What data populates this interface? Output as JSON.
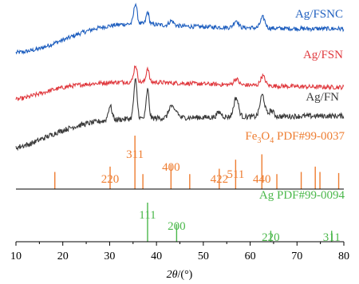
{
  "chart_data": {
    "type": "line",
    "xlabel_italic": "2θ",
    "xlabel_unit": "/(°)",
    "xlim": [
      10,
      80
    ],
    "x_ticks": [
      10,
      20,
      30,
      40,
      50,
      60,
      70,
      80
    ],
    "x_tick_labels": [
      "10",
      "20",
      "30",
      "40",
      "50",
      "60",
      "70",
      "80"
    ],
    "series": [
      {
        "name": "Ag/FSNC",
        "color": "#1f5fbf",
        "noise": 0.9,
        "x": [
          10,
          12,
          15,
          18,
          21,
          24,
          27,
          30,
          32,
          34,
          36,
          38,
          40,
          42,
          45,
          48,
          52,
          56,
          60,
          64,
          68,
          72,
          76,
          80
        ],
        "y": [
          0.0,
          0.4,
          1.6,
          3.8,
          6.0,
          8.3,
          10.1,
          11.2,
          11.7,
          12.0,
          12.1,
          12.0,
          11.7,
          11.4,
          11.1,
          10.9,
          10.7,
          10.5,
          10.4,
          10.2,
          10.1,
          10.0,
          10.0,
          10.0
        ],
        "peaks": [
          {
            "x": 35.5,
            "h": 8.5,
            "w": 0.35
          },
          {
            "x": 38.1,
            "h": 5.0,
            "w": 0.3
          },
          {
            "x": 43.2,
            "h": 2.0,
            "w": 0.5
          },
          {
            "x": 57.0,
            "h": 3.0,
            "w": 0.5
          },
          {
            "x": 62.7,
            "h": 4.5,
            "w": 0.5
          }
        ]
      },
      {
        "name": "Ag/FSN",
        "color": "#e0393e",
        "noise": 0.9,
        "x": [
          10,
          12,
          15,
          18,
          21,
          24,
          27,
          30,
          33,
          36,
          40,
          45,
          50,
          55,
          60,
          65,
          70,
          75,
          80
        ],
        "y": [
          0.0,
          0.8,
          2.5,
          4.2,
          5.5,
          6.3,
          6.8,
          7.2,
          7.4,
          7.4,
          7.3,
          6.9,
          6.6,
          6.3,
          6.1,
          5.8,
          5.5,
          5.3,
          5.2
        ],
        "peaks": [
          {
            "x": 35.5,
            "h": 7.0,
            "w": 0.35
          },
          {
            "x": 38.1,
            "h": 6.0,
            "w": 0.3
          },
          {
            "x": 57.0,
            "h": 2.5,
            "w": 0.5
          },
          {
            "x": 62.7,
            "h": 4.0,
            "w": 0.5
          }
        ]
      },
      {
        "name": "Ag/FN",
        "color": "#3a3a3a",
        "noise": 1.1,
        "x": [
          10,
          13,
          16,
          19,
          22,
          25,
          28,
          31,
          34,
          37,
          40,
          45,
          50,
          55,
          60,
          65,
          70,
          75,
          80
        ],
        "y": [
          0.0,
          1.5,
          4.0,
          6.5,
          8.5,
          10.0,
          11.0,
          11.6,
          12.0,
          12.2,
          12.3,
          12.5,
          12.6,
          12.8,
          12.9,
          13.0,
          13.1,
          13.2,
          13.2
        ],
        "peaks": [
          {
            "x": 30.1,
            "h": 6.0,
            "w": 0.4
          },
          {
            "x": 35.5,
            "h": 16.0,
            "w": 0.35
          },
          {
            "x": 38.1,
            "h": 12.0,
            "w": 0.3
          },
          {
            "x": 43.1,
            "h": 5.0,
            "w": 0.5
          },
          {
            "x": 44.3,
            "h": 2.5,
            "w": 0.4
          },
          {
            "x": 53.4,
            "h": 2.0,
            "w": 0.5
          },
          {
            "x": 57.0,
            "h": 8.0,
            "w": 0.5
          },
          {
            "x": 62.6,
            "h": 9.0,
            "w": 0.5
          },
          {
            "x": 64.5,
            "h": 2.5,
            "w": 0.5
          }
        ]
      }
    ],
    "references": [
      {
        "title_main": "Fe",
        "title_sub": "3",
        "title_main2": "O",
        "title_sub2": "4",
        "title_rest": " PDF#99-0037",
        "color": "#ee7d31",
        "lines": [
          {
            "x": 18.3,
            "h": 0.32
          },
          {
            "x": 30.1,
            "h": 0.42
          },
          {
            "x": 35.4,
            "h": 1.0
          },
          {
            "x": 37.1,
            "h": 0.28
          },
          {
            "x": 43.1,
            "h": 0.46
          },
          {
            "x": 47.1,
            "h": 0.28
          },
          {
            "x": 53.4,
            "h": 0.38
          },
          {
            "x": 56.9,
            "h": 0.55
          },
          {
            "x": 62.5,
            "h": 0.65
          },
          {
            "x": 65.7,
            "h": 0.28
          },
          {
            "x": 70.9,
            "h": 0.32
          },
          {
            "x": 73.9,
            "h": 0.42
          },
          {
            "x": 74.9,
            "h": 0.32
          },
          {
            "x": 78.9,
            "h": 0.3
          }
        ],
        "labels": [
          {
            "text": "220",
            "x": 30.1,
            "row": 2
          },
          {
            "text": "311",
            "x": 35.4,
            "row": 0
          },
          {
            "text": "400",
            "x": 43.1,
            "row": 1
          },
          {
            "text": "422",
            "x": 53.4,
            "row": 2
          },
          {
            "text": "511",
            "x": 56.9,
            "row": 1.6
          },
          {
            "text": "440",
            "x": 62.5,
            "row": 2
          }
        ]
      },
      {
        "title_rest": "Ag PDF#99-0094",
        "color": "#4bb84b",
        "lines": [
          {
            "x": 38.1,
            "h": 1.0
          },
          {
            "x": 44.3,
            "h": 0.45
          },
          {
            "x": 64.4,
            "h": 0.28
          },
          {
            "x": 77.4,
            "h": 0.28
          }
        ],
        "labels": [
          {
            "text": "111",
            "x": 38.1,
            "row": 0
          },
          {
            "text": "200",
            "x": 44.3,
            "row": 1
          },
          {
            "text": "220",
            "x": 64.4,
            "row": 2
          },
          {
            "text": "311",
            "x": 77.4,
            "row": 2
          }
        ]
      }
    ],
    "grid": false,
    "legend": "inline-labels"
  }
}
